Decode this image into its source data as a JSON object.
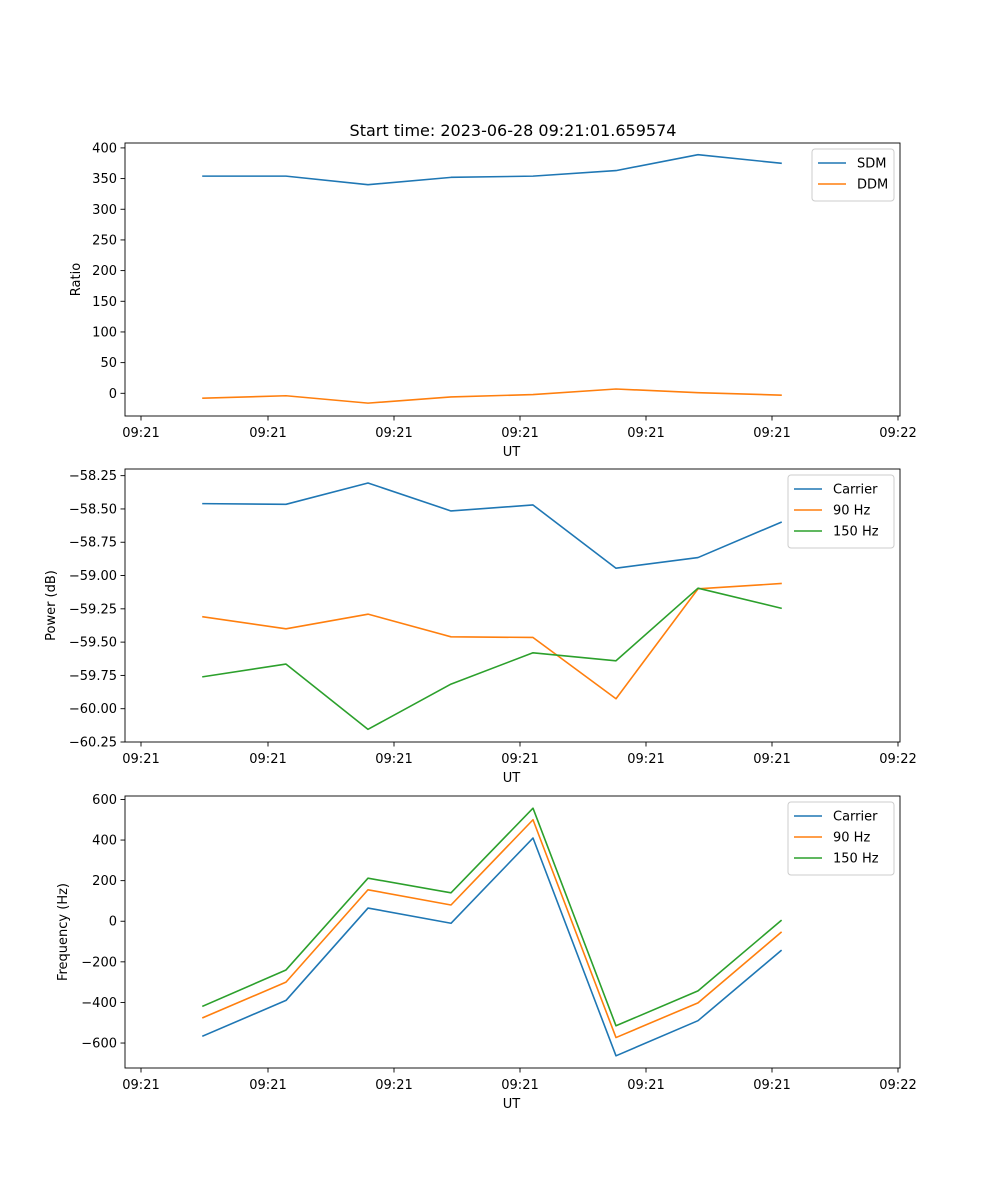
{
  "figure": {
    "title": "Start time: 2023-06-28 09:21:01.659574"
  },
  "chart_data": [
    {
      "type": "line",
      "title": "Start time: 2023-06-28 09:21:01.659574",
      "xlabel": "UT",
      "ylabel": "Ratio",
      "x_tick_labels": [
        "09:21",
        "09:21",
        "09:21",
        "09:21",
        "09:21",
        "09:21",
        "09:22"
      ],
      "ylim": [
        -37,
        408
      ],
      "y_ticks": [
        0,
        50,
        100,
        150,
        200,
        250,
        300,
        350,
        400
      ],
      "legend_position": "top-right",
      "grid": false,
      "series": [
        {
          "name": "SDM",
          "color": "#1f77b4",
          "values": [
            354,
            354,
            340,
            352,
            354,
            363,
            389,
            375
          ]
        },
        {
          "name": "DDM",
          "color": "#ff7f0e",
          "values": [
            -8,
            -4,
            -16,
            -6,
            -2,
            7,
            1,
            -3
          ]
        }
      ]
    },
    {
      "type": "line",
      "title": "",
      "xlabel": "UT",
      "ylabel": "Power (dB)",
      "x_tick_labels": [
        "09:21",
        "09:21",
        "09:21",
        "09:21",
        "09:21",
        "09:21",
        "09:22"
      ],
      "ylim": [
        -60.25,
        -58.2
      ],
      "y_ticks": [
        -60.25,
        -60.0,
        -59.75,
        -59.5,
        -59.25,
        -59.0,
        -58.75,
        -58.5,
        -58.25
      ],
      "legend_position": "top-right",
      "grid": false,
      "series": [
        {
          "name": "Carrier",
          "color": "#1f77b4",
          "values": [
            -58.46,
            -58.465,
            -58.305,
            -58.515,
            -58.47,
            -58.945,
            -58.865,
            -58.6
          ]
        },
        {
          "name": "90 Hz",
          "color": "#ff7f0e",
          "values": [
            -59.31,
            -59.4,
            -59.29,
            -59.46,
            -59.465,
            -59.925,
            -59.1,
            -59.06
          ]
        },
        {
          "name": "150 Hz",
          "color": "#2ca02c",
          "values": [
            -59.76,
            -59.665,
            -60.155,
            -59.815,
            -59.58,
            -59.64,
            -59.095,
            -59.245
          ]
        }
      ]
    },
    {
      "type": "line",
      "title": "",
      "xlabel": "UT",
      "ylabel": "Frequency (Hz)",
      "x_tick_labels": [
        "09:21",
        "09:21",
        "09:21",
        "09:21",
        "09:21",
        "09:21",
        "09:22"
      ],
      "ylim": [
        -723,
        617
      ],
      "y_ticks": [
        -600,
        -400,
        -200,
        0,
        200,
        400,
        600
      ],
      "legend_position": "top-right",
      "grid": false,
      "series": [
        {
          "name": "Carrier",
          "color": "#1f77b4",
          "values": [
            -565,
            -390,
            65,
            -10,
            410,
            -663,
            -490,
            -145
          ]
        },
        {
          "name": "90 Hz",
          "color": "#ff7f0e",
          "values": [
            -475,
            -300,
            155,
            80,
            500,
            -573,
            -402,
            -55
          ]
        },
        {
          "name": "150 Hz",
          "color": "#2ca02c",
          "values": [
            -418,
            -240,
            212,
            140,
            557,
            -515,
            -343,
            3
          ]
        }
      ]
    }
  ]
}
